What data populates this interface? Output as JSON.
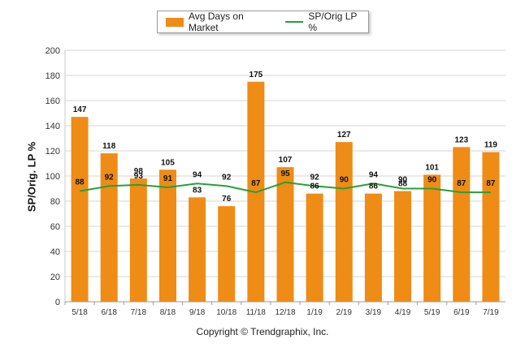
{
  "legend": {
    "bar_label": "Avg Days on Market",
    "line_label": "SP/Orig LP %"
  },
  "ylabel": "SP/Orig. LP %",
  "copyright": "Copyright © Trendgraphix, Inc.",
  "colors": {
    "bar": "#ee8c16",
    "line": "#25a03c",
    "grid": "#d4d4d4"
  },
  "chart_data": {
    "type": "bar",
    "categories": [
      "5/18",
      "6/18",
      "7/18",
      "8/18",
      "9/18",
      "10/18",
      "11/18",
      "12/18",
      "1/19",
      "2/19",
      "3/19",
      "4/19",
      "5/19",
      "6/19",
      "7/19"
    ],
    "series": [
      {
        "name": "Avg Days on Market",
        "type": "bar",
        "values": [
          147,
          118,
          98,
          105,
          83,
          76,
          175,
          107,
          86,
          127,
          86,
          88,
          101,
          123,
          119
        ]
      },
      {
        "name": "SP/Orig LP %",
        "type": "line",
        "values": [
          88,
          92,
          93,
          91,
          94,
          92,
          87,
          95,
          92,
          90,
          94,
          90,
          90,
          87,
          87
        ]
      }
    ],
    "ylabel": "SP/Orig. LP %",
    "ylim": [
      0,
      200
    ],
    "yticks": [
      0,
      20,
      40,
      60,
      80,
      100,
      120,
      140,
      160,
      180,
      200
    ],
    "grid": true,
    "legend": "top-center"
  }
}
